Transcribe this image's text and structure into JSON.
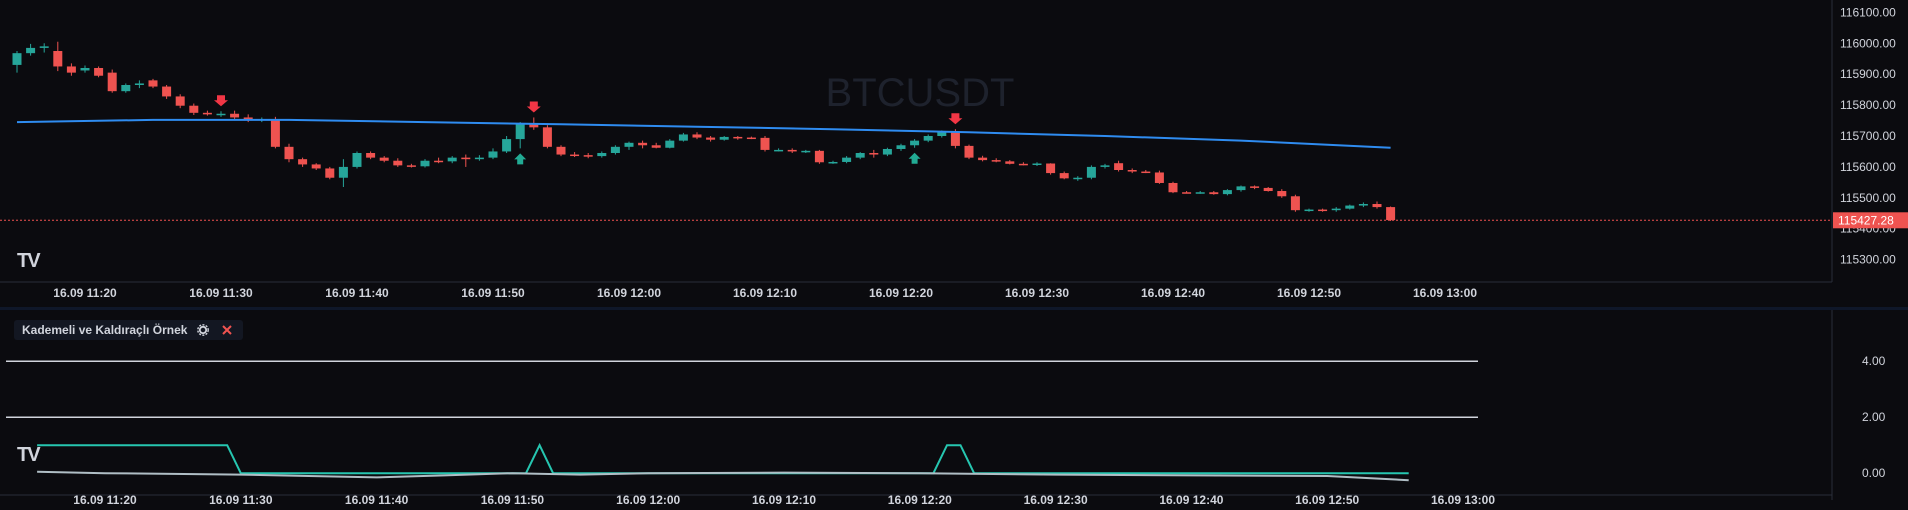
{
  "symbol_watermark": "BTCUSDT",
  "indicator": {
    "title": "Kademeli ve Kaldıraçlı Örnek",
    "settings_icon": "gear-icon",
    "remove_icon": "close-icon"
  },
  "logo": "TV",
  "colors": {
    "up": "#26a69a",
    "down": "#ef5350",
    "ma": "#2f8cf0",
    "last_price": "#ef5350",
    "osc": "#26c6b0",
    "osc2": "#b0bec5",
    "level": "#d1d4dc"
  },
  "price_axis": {
    "ticks": [
      "116100.00",
      "116000.00",
      "115900.00",
      "115800.00",
      "115700.00",
      "115600.00",
      "115500.00",
      "115400.00",
      "115300.00"
    ],
    "last_price": "115427.28"
  },
  "time_axis": [
    "16.09 11:20",
    "16.09 11:30",
    "16.09 11:40",
    "16.09 11:50",
    "16.09 12:00",
    "16.09 12:10",
    "16.09 12:20",
    "16.09 12:30",
    "16.09 12:40",
    "16.09 12:50",
    "16.09 13:00"
  ],
  "indicator_axis": [
    "4.00",
    "2.00",
    "0.00"
  ],
  "chart_data": {
    "type": "candlestick",
    "interval_minutes": 1,
    "candles": [
      {
        "t": "11:15",
        "o": 115930,
        "h": 115975,
        "l": 115905,
        "c": 115968
      },
      {
        "t": "11:16",
        "o": 115968,
        "h": 115998,
        "l": 115960,
        "c": 115985
      },
      {
        "t": "11:17",
        "o": 115985,
        "h": 116000,
        "l": 115970,
        "c": 115990
      },
      {
        "t": "11:18",
        "o": 115975,
        "h": 116005,
        "l": 115910,
        "c": 115925
      },
      {
        "t": "11:19",
        "o": 115925,
        "h": 115935,
        "l": 115895,
        "c": 115905
      },
      {
        "t": "11:20",
        "o": 115912,
        "h": 115928,
        "l": 115905,
        "c": 115920
      },
      {
        "t": "11:21",
        "o": 115920,
        "h": 115925,
        "l": 115890,
        "c": 115895
      },
      {
        "t": "11:22",
        "o": 115905,
        "h": 115915,
        "l": 115840,
        "c": 115845
      },
      {
        "t": "11:23",
        "o": 115845,
        "h": 115870,
        "l": 115840,
        "c": 115865
      },
      {
        "t": "11:24",
        "o": 115865,
        "h": 115880,
        "l": 115855,
        "c": 115870
      },
      {
        "t": "11:25",
        "o": 115880,
        "h": 115885,
        "l": 115855,
        "c": 115860
      },
      {
        "t": "11:26",
        "o": 115860,
        "h": 115865,
        "l": 115820,
        "c": 115828
      },
      {
        "t": "11:27",
        "o": 115828,
        "h": 115835,
        "l": 115790,
        "c": 115798
      },
      {
        "t": "11:28",
        "o": 115798,
        "h": 115805,
        "l": 115768,
        "c": 115775
      },
      {
        "t": "11:29",
        "o": 115775,
        "h": 115782,
        "l": 115766,
        "c": 115770
      },
      {
        "t": "11:30",
        "o": 115770,
        "h": 115780,
        "l": 115762,
        "c": 115772
      },
      {
        "t": "11:31",
        "o": 115772,
        "h": 115782,
        "l": 115755,
        "c": 115760
      },
      {
        "t": "11:32",
        "o": 115760,
        "h": 115770,
        "l": 115745,
        "c": 115750
      },
      {
        "t": "11:33",
        "o": 115752,
        "h": 115760,
        "l": 115745,
        "c": 115755
      },
      {
        "t": "11:34",
        "o": 115755,
        "h": 115762,
        "l": 115660,
        "c": 115665
      },
      {
        "t": "11:35",
        "o": 115665,
        "h": 115675,
        "l": 115615,
        "c": 115625
      },
      {
        "t": "11:36",
        "o": 115625,
        "h": 115630,
        "l": 115600,
        "c": 115608
      },
      {
        "t": "11:37",
        "o": 115608,
        "h": 115612,
        "l": 115590,
        "c": 115595
      },
      {
        "t": "11:38",
        "o": 115595,
        "h": 115600,
        "l": 115560,
        "c": 115565
      },
      {
        "t": "11:39",
        "o": 115565,
        "h": 115625,
        "l": 115535,
        "c": 115600
      },
      {
        "t": "11:40",
        "o": 115600,
        "h": 115650,
        "l": 115595,
        "c": 115645
      },
      {
        "t": "11:41",
        "o": 115645,
        "h": 115650,
        "l": 115625,
        "c": 115630
      },
      {
        "t": "11:42",
        "o": 115630,
        "h": 115635,
        "l": 115615,
        "c": 115620
      },
      {
        "t": "11:43",
        "o": 115620,
        "h": 115628,
        "l": 115600,
        "c": 115605
      },
      {
        "t": "11:44",
        "o": 115605,
        "h": 115610,
        "l": 115598,
        "c": 115602
      },
      {
        "t": "11:45",
        "o": 115602,
        "h": 115625,
        "l": 115598,
        "c": 115620
      },
      {
        "t": "11:46",
        "o": 115620,
        "h": 115630,
        "l": 115612,
        "c": 115618
      },
      {
        "t": "11:47",
        "o": 115618,
        "h": 115635,
        "l": 115612,
        "c": 115630
      },
      {
        "t": "11:48",
        "o": 115630,
        "h": 115640,
        "l": 115600,
        "c": 115625
      },
      {
        "t": "11:49",
        "o": 115625,
        "h": 115638,
        "l": 115620,
        "c": 115630
      },
      {
        "t": "11:50",
        "o": 115630,
        "h": 115660,
        "l": 115625,
        "c": 115650
      },
      {
        "t": "11:51",
        "o": 115650,
        "h": 115700,
        "l": 115645,
        "c": 115690
      },
      {
        "t": "11:52",
        "o": 115690,
        "h": 115745,
        "l": 115660,
        "c": 115740
      },
      {
        "t": "11:53",
        "o": 115740,
        "h": 115760,
        "l": 115720,
        "c": 115728
      },
      {
        "t": "11:54",
        "o": 115728,
        "h": 115735,
        "l": 115660,
        "c": 115665
      },
      {
        "t": "11:55",
        "o": 115665,
        "h": 115670,
        "l": 115635,
        "c": 115640
      },
      {
        "t": "11:56",
        "o": 115640,
        "h": 115648,
        "l": 115632,
        "c": 115638
      },
      {
        "t": "11:57",
        "o": 115638,
        "h": 115645,
        "l": 115628,
        "c": 115635
      },
      {
        "t": "11:58",
        "o": 115635,
        "h": 115650,
        "l": 115630,
        "c": 115645
      },
      {
        "t": "11:59",
        "o": 115645,
        "h": 115670,
        "l": 115640,
        "c": 115665
      },
      {
        "t": "12:00",
        "o": 115665,
        "h": 115682,
        "l": 115655,
        "c": 115678
      },
      {
        "t": "12:01",
        "o": 115678,
        "h": 115685,
        "l": 115660,
        "c": 115670
      },
      {
        "t": "12:02",
        "o": 115670,
        "h": 115678,
        "l": 115660,
        "c": 115662
      },
      {
        "t": "12:03",
        "o": 115662,
        "h": 115690,
        "l": 115660,
        "c": 115685
      },
      {
        "t": "12:04",
        "o": 115685,
        "h": 115710,
        "l": 115682,
        "c": 115705
      },
      {
        "t": "12:05",
        "o": 115705,
        "h": 115712,
        "l": 115690,
        "c": 115695
      },
      {
        "t": "12:06",
        "o": 115695,
        "h": 115700,
        "l": 115682,
        "c": 115688
      },
      {
        "t": "12:07",
        "o": 115688,
        "h": 115700,
        "l": 115685,
        "c": 115697
      },
      {
        "t": "12:08",
        "o": 115697,
        "h": 115700,
        "l": 115688,
        "c": 115695
      },
      {
        "t": "12:09",
        "o": 115695,
        "h": 115698,
        "l": 115690,
        "c": 115694
      },
      {
        "t": "12:10",
        "o": 115694,
        "h": 115700,
        "l": 115650,
        "c": 115655
      },
      {
        "t": "12:11",
        "o": 115655,
        "h": 115660,
        "l": 115650,
        "c": 115655
      },
      {
        "t": "12:12",
        "o": 115655,
        "h": 115660,
        "l": 115645,
        "c": 115650
      },
      {
        "t": "12:13",
        "o": 115650,
        "h": 115655,
        "l": 115645,
        "c": 115652
      },
      {
        "t": "12:14",
        "o": 115652,
        "h": 115655,
        "l": 115610,
        "c": 115615
      },
      {
        "t": "12:15",
        "o": 115615,
        "h": 115620,
        "l": 115610,
        "c": 115616
      },
      {
        "t": "12:16",
        "o": 115616,
        "h": 115635,
        "l": 115612,
        "c": 115630
      },
      {
        "t": "12:17",
        "o": 115630,
        "h": 115648,
        "l": 115625,
        "c": 115645
      },
      {
        "t": "12:18",
        "o": 115645,
        "h": 115655,
        "l": 115630,
        "c": 115640
      },
      {
        "t": "12:19",
        "o": 115640,
        "h": 115662,
        "l": 115635,
        "c": 115658
      },
      {
        "t": "12:20",
        "o": 115658,
        "h": 115675,
        "l": 115652,
        "c": 115670
      },
      {
        "t": "12:21",
        "o": 115670,
        "h": 115690,
        "l": 115662,
        "c": 115685
      },
      {
        "t": "12:22",
        "o": 115685,
        "h": 115705,
        "l": 115680,
        "c": 115700
      },
      {
        "t": "12:23",
        "o": 115700,
        "h": 115718,
        "l": 115695,
        "c": 115712
      },
      {
        "t": "12:24",
        "o": 115715,
        "h": 115722,
        "l": 115660,
        "c": 115668
      },
      {
        "t": "12:25",
        "o": 115668,
        "h": 115672,
        "l": 115625,
        "c": 115630
      },
      {
        "t": "12:26",
        "o": 115630,
        "h": 115636,
        "l": 115618,
        "c": 115622
      },
      {
        "t": "12:27",
        "o": 115622,
        "h": 115628,
        "l": 115615,
        "c": 115618
      },
      {
        "t": "12:28",
        "o": 115618,
        "h": 115622,
        "l": 115608,
        "c": 115610
      },
      {
        "t": "12:29",
        "o": 115610,
        "h": 115615,
        "l": 115605,
        "c": 115608
      },
      {
        "t": "12:30",
        "o": 115608,
        "h": 115615,
        "l": 115603,
        "c": 115611
      },
      {
        "t": "12:31",
        "o": 115611,
        "h": 115612,
        "l": 115575,
        "c": 115580
      },
      {
        "t": "12:32",
        "o": 115580,
        "h": 115585,
        "l": 115560,
        "c": 115563
      },
      {
        "t": "12:33",
        "o": 115563,
        "h": 115570,
        "l": 115555,
        "c": 115565
      },
      {
        "t": "12:34",
        "o": 115565,
        "h": 115605,
        "l": 115560,
        "c": 115600
      },
      {
        "t": "12:35",
        "o": 115600,
        "h": 115610,
        "l": 115595,
        "c": 115605
      },
      {
        "t": "12:36",
        "o": 115612,
        "h": 115620,
        "l": 115585,
        "c": 115590
      },
      {
        "t": "12:37",
        "o": 115590,
        "h": 115595,
        "l": 115580,
        "c": 115585
      },
      {
        "t": "12:38",
        "o": 115585,
        "h": 115590,
        "l": 115580,
        "c": 115582
      },
      {
        "t": "12:39",
        "o": 115582,
        "h": 115588,
        "l": 115545,
        "c": 115548
      },
      {
        "t": "12:40",
        "o": 115548,
        "h": 115552,
        "l": 115515,
        "c": 115518
      },
      {
        "t": "12:41",
        "o": 115518,
        "h": 115522,
        "l": 115514,
        "c": 115517
      },
      {
        "t": "12:42",
        "o": 115517,
        "h": 115522,
        "l": 115513,
        "c": 115518
      },
      {
        "t": "12:43",
        "o": 115518,
        "h": 115522,
        "l": 115510,
        "c": 115512
      },
      {
        "t": "12:44",
        "o": 115512,
        "h": 115528,
        "l": 115508,
        "c": 115525
      },
      {
        "t": "12:45",
        "o": 115525,
        "h": 115540,
        "l": 115520,
        "c": 115537
      },
      {
        "t": "12:46",
        "o": 115537,
        "h": 115540,
        "l": 115528,
        "c": 115532
      },
      {
        "t": "12:47",
        "o": 115532,
        "h": 115535,
        "l": 115520,
        "c": 115522
      },
      {
        "t": "12:48",
        "o": 115522,
        "h": 115528,
        "l": 115500,
        "c": 115505
      },
      {
        "t": "12:49",
        "o": 115505,
        "h": 115510,
        "l": 115455,
        "c": 115460
      },
      {
        "t": "12:50",
        "o": 115460,
        "h": 115465,
        "l": 115455,
        "c": 115462
      },
      {
        "t": "12:51",
        "o": 115462,
        "h": 115465,
        "l": 115455,
        "c": 115460
      },
      {
        "t": "12:52",
        "o": 115460,
        "h": 115470,
        "l": 115455,
        "c": 115465
      },
      {
        "t": "12:53",
        "o": 115465,
        "h": 115478,
        "l": 115462,
        "c": 115475
      },
      {
        "t": "12:54",
        "o": 115475,
        "h": 115485,
        "l": 115470,
        "c": 115480
      },
      {
        "t": "12:55",
        "o": 115480,
        "h": 115488,
        "l": 115465,
        "c": 115470
      },
      {
        "t": "12:56",
        "o": 115470,
        "h": 115472,
        "l": 115425,
        "c": 115428
      }
    ],
    "ma": [
      {
        "t": "11:15",
        "v": 115745
      },
      {
        "t": "11:25",
        "v": 115752
      },
      {
        "t": "11:35",
        "v": 115752
      },
      {
        "t": "11:45",
        "v": 115745
      },
      {
        "t": "11:55",
        "v": 115738
      },
      {
        "t": "12:05",
        "v": 115730
      },
      {
        "t": "12:15",
        "v": 115722
      },
      {
        "t": "12:25",
        "v": 115712
      },
      {
        "t": "12:35",
        "v": 115700
      },
      {
        "t": "12:45",
        "v": 115685
      },
      {
        "t": "12:56",
        "v": 115662
      }
    ],
    "signals": [
      {
        "t": "11:30",
        "type": "sell"
      },
      {
        "t": "11:52",
        "type": "buy"
      },
      {
        "t": "11:53",
        "type": "sell"
      },
      {
        "t": "12:21",
        "type": "buy"
      },
      {
        "t": "12:24",
        "type": "sell"
      }
    ],
    "indicator_series": [
      {
        "name": "",
        "color_key": "osc",
        "points": [
          [
            "11:15",
            1
          ],
          [
            "11:29",
            1
          ],
          [
            "11:30",
            0
          ],
          [
            "11:51",
            0
          ],
          [
            "11:52",
            1
          ],
          [
            "11:53",
            0
          ],
          [
            "12:21",
            0
          ],
          [
            "12:22",
            1
          ],
          [
            "12:23",
            1
          ],
          [
            "12:24",
            0
          ],
          [
            "12:56",
            0
          ]
        ]
      },
      {
        "name": "",
        "color_key": "osc2",
        "points": [
          [
            "11:15",
            0.05
          ],
          [
            "11:20",
            0
          ],
          [
            "11:30",
            -0.05
          ],
          [
            "11:35",
            -0.1
          ],
          [
            "11:40",
            -0.15
          ],
          [
            "11:45",
            -0.08
          ],
          [
            "11:50",
            0
          ],
          [
            "11:55",
            -0.05
          ],
          [
            "12:00",
            0
          ],
          [
            "12:10",
            0.02
          ],
          [
            "12:20",
            0
          ],
          [
            "12:30",
            -0.05
          ],
          [
            "12:40",
            -0.08
          ],
          [
            "12:50",
            -0.1
          ],
          [
            "12:56",
            -0.25
          ]
        ]
      }
    ],
    "indicator_levels": [
      4,
      2
    ],
    "ylim_price": [
      115260,
      116140
    ],
    "ylim_indicator": [
      -0.6,
      5.4
    ]
  }
}
